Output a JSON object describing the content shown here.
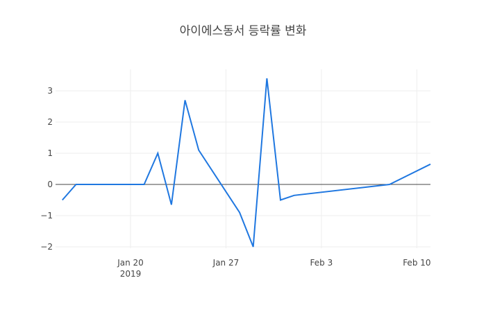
{
  "chart_data": {
    "type": "line",
    "title": "아이에스동서 등락률 변화",
    "xlabel": "",
    "ylabel": "",
    "x_ticks": [
      "Jan 20",
      "Jan 27",
      "Feb 3",
      "Feb 10"
    ],
    "x_tick_sublabel": "2019",
    "y_ticks": [
      "3",
      "2",
      "1",
      "0",
      "−1",
      "−2"
    ],
    "y_range": [
      -2.2,
      3.75
    ],
    "grid": true,
    "series": [
      {
        "color": "#1f77e0",
        "x": [
          "2019-01-15",
          "2019-01-16",
          "2019-01-21",
          "2019-01-22",
          "2019-01-23",
          "2019-01-24",
          "2019-01-25",
          "2019-01-28",
          "2019-01-29",
          "2019-01-30",
          "2019-01-31",
          "2019-02-01",
          "2019-02-08",
          "2019-02-11"
        ],
        "y": [
          -0.5,
          0.0,
          0.0,
          1.0,
          -0.65,
          2.7,
          1.1,
          -0.9,
          -2.0,
          3.4,
          -0.5,
          -0.35,
          0.0,
          0.65
        ]
      }
    ]
  }
}
